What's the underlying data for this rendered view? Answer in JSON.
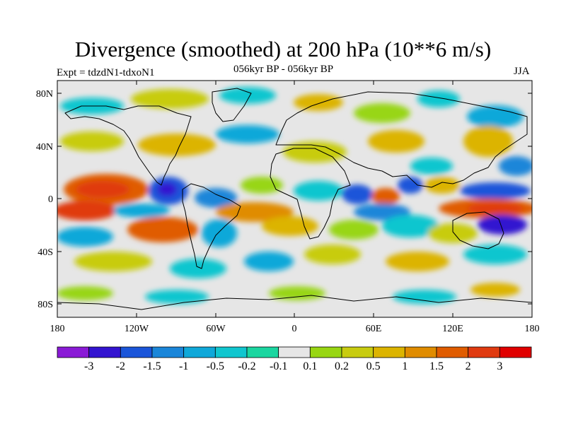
{
  "title": "Divergence (smoothed) at 200 hPa (10**6 m/s)",
  "subtitle_left": "Expt = tdzdN1-tdxoN1",
  "subtitle_center": "056kyr BP - 056kyr BP",
  "subtitle_right": "JJA",
  "lat_labels": [
    "80N",
    "40N",
    "0",
    "40S",
    "80S"
  ],
  "lon_labels": [
    "180",
    "120W",
    "60W",
    "0",
    "60E",
    "120E",
    "180"
  ],
  "colorbar": {
    "labels": [
      "-3",
      "-2",
      "-1.5",
      "-1",
      "-0.5",
      "-0.2",
      "-0.1",
      "0.1",
      "0.2",
      "0.5",
      "1",
      "1.5",
      "2",
      "3"
    ],
    "colors": [
      "#8a1ad6",
      "#3314d0",
      "#1a55d9",
      "#1a86d9",
      "#0fa8d9",
      "#10c6cf",
      "#1ad6a0",
      "#e6e6e6",
      "#98d612",
      "#c8cc10",
      "#dcb400",
      "#e08c00",
      "#e05c00",
      "#e03a10",
      "#e00000"
    ]
  },
  "field_colors": {
    "neutral": "#e6e6e6",
    "pos_light": "#98d612",
    "pos_mid": "#c8cc10",
    "pos_orange": "#dcb400",
    "pos_dark_orange": "#e08c00",
    "pos_red_orange": "#e05c00",
    "pos_red": "#e03a10",
    "neg_teal": "#1ad6a0",
    "neg_cyan": "#10c6cf",
    "neg_sky": "#0fa8d9",
    "neg_blue": "#1a86d9",
    "neg_dark_blue": "#1a55d9",
    "neg_indigo": "#3314d0"
  }
}
